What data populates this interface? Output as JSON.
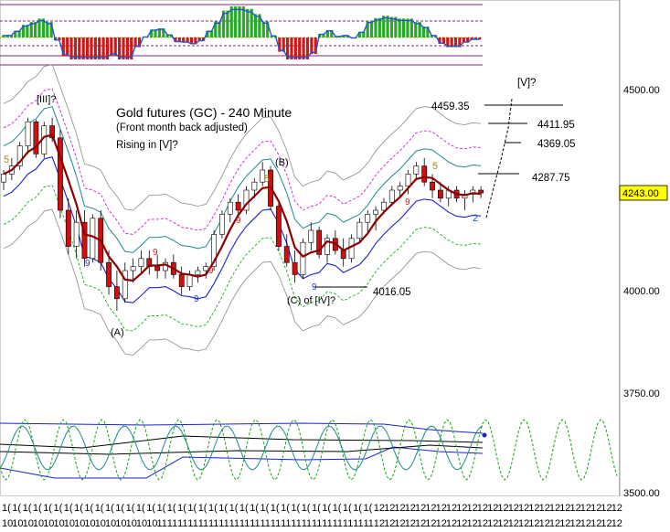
{
  "chart_data": {
    "type": "candlestick",
    "title": "Gold futures (GC) - 240 Minute",
    "subtitle_lines": [
      "(Front month back adjusted)",
      "Rising in [V]?"
    ],
    "y_axis": {
      "ylim": [
        3430,
        4700
      ],
      "ticks": [
        "4500.00",
        "4000.00",
        "3750.00",
        "3500.00"
      ],
      "tick_values": [
        4500,
        4000,
        3750,
        3500
      ]
    },
    "last_price": {
      "value": 4243,
      "label": "4243.00"
    },
    "x_tick_labels_row1": [
      "1(",
      "1(",
      "1(",
      "1(",
      "1(",
      "1(",
      "1(",
      "1(",
      "1(",
      "1(",
      "1(",
      "1(",
      "1(",
      "1(",
      "1(",
      "1(",
      "1(",
      "1(",
      "1(",
      "1(",
      "1(",
      "1(",
      "1(",
      "1(",
      "1(",
      "1(",
      "1(",
      "1(",
      "1(",
      "1(",
      "1(",
      "1(",
      "1(",
      "1(",
      "1(",
      "1(",
      "12",
      "12",
      "12",
      "12",
      "12",
      "12",
      "12",
      "12",
      "12",
      "12",
      "12",
      "12",
      "12",
      "12",
      "12",
      "12",
      "12",
      "12",
      "12",
      "12",
      "12",
      "12",
      "12",
      "12"
    ],
    "x_tick_labels_row2": [
      "10",
      "10",
      "10",
      "10",
      "10",
      "10",
      "10",
      "10",
      "10",
      "10",
      "10",
      "10",
      "10",
      "10",
      "10",
      "11",
      "11",
      "11",
      "11",
      "11",
      "11",
      "11",
      "11",
      "11",
      "11",
      "11",
      "11",
      "11",
      "11",
      "11",
      "11",
      "11",
      "11",
      "11",
      "11",
      "11",
      "12",
      "12",
      "12",
      "12",
      "12",
      "12",
      "12",
      "12",
      "12",
      "12",
      "12",
      "12",
      "12",
      "12",
      "12",
      "12",
      "12",
      "12",
      "12",
      "12",
      "12",
      "12",
      "12",
      "12"
    ],
    "wave_labels": [
      {
        "text": "[III]?",
        "price": 4545,
        "bar": 5
      },
      {
        "text": "5",
        "price": 4300,
        "bar": 0
      },
      {
        "text": "(A)",
        "price": 3960,
        "bar": 14
      },
      {
        "text": "(B)",
        "price": 4330,
        "bar": 41
      },
      {
        "text": "5",
        "price": 4285,
        "bar": 39
      },
      {
        "text": "(C) of [IV]?",
        "price": 3985,
        "bar": 47
      },
      {
        "text": "5",
        "price": 4300,
        "bar": 68
      },
      {
        "text": "2",
        "price": 4180,
        "bar": 74
      },
      {
        "text": "9",
        "price": 4060,
        "bar": 12
      },
      {
        "text": "9",
        "price": 4235,
        "bar": 31
      },
      {
        "text": "9",
        "price": 4100,
        "bar": 24
      },
      {
        "text": "9",
        "price": 4015,
        "bar": 28
      },
      {
        "text": "9",
        "price": 4000,
        "bar": 48
      },
      {
        "text": "9",
        "price": 4215,
        "bar": 62
      },
      {
        "text": "9",
        "price": 4145,
        "bar": 12
      }
    ],
    "target_levels": [
      {
        "label": "[V]?",
        "price": 4595
      },
      {
        "label": "4459.35",
        "price": 4455
      },
      {
        "label": "4411.95",
        "price": 4410
      },
      {
        "label": "4369.05",
        "price": 4367
      },
      {
        "label": "4287.75",
        "price": 4287
      },
      {
        "label": "4016.05",
        "price": 4015
      }
    ],
    "candles": [
      [
        4270,
        4300,
        4250,
        4290
      ],
      [
        4290,
        4330,
        4275,
        4310
      ],
      [
        4310,
        4370,
        4300,
        4360
      ],
      [
        4360,
        4430,
        4340,
        4420
      ],
      [
        4420,
        4425,
        4330,
        4340
      ],
      [
        4340,
        4420,
        4330,
        4410
      ],
      [
        4410,
        4430,
        4370,
        4380
      ],
      [
        4380,
        4400,
        4180,
        4200
      ],
      [
        4200,
        4230,
        4090,
        4110
      ],
      [
        4110,
        4200,
        4080,
        4170
      ],
      [
        4170,
        4200,
        4060,
        4080
      ],
      [
        4080,
        4190,
        4070,
        4180
      ],
      [
        4180,
        4200,
        4050,
        4070
      ],
      [
        4070,
        4100,
        3990,
        4010
      ],
      [
        4010,
        4050,
        3950,
        3980
      ],
      [
        3980,
        4070,
        3970,
        4050
      ],
      [
        4050,
        4080,
        4020,
        4060
      ],
      [
        4060,
        4100,
        4040,
        4080
      ],
      [
        4080,
        4100,
        4040,
        4060
      ],
      [
        4060,
        4090,
        4030,
        4050
      ],
      [
        4050,
        4080,
        4030,
        4070
      ],
      [
        4070,
        4090,
        4030,
        4040
      ],
      [
        4040,
        4060,
        3990,
        4010
      ],
      [
        4010,
        4050,
        4000,
        4040
      ],
      [
        4040,
        4060,
        4020,
        4050
      ],
      [
        4050,
        4070,
        4030,
        4060
      ],
      [
        4060,
        4150,
        4050,
        4140
      ],
      [
        4140,
        4200,
        4130,
        4190
      ],
      [
        4190,
        4230,
        4170,
        4220
      ],
      [
        4220,
        4240,
        4180,
        4200
      ],
      [
        4200,
        4260,
        4190,
        4250
      ],
      [
        4250,
        4280,
        4230,
        4270
      ],
      [
        4270,
        4320,
        4260,
        4300
      ],
      [
        4300,
        4310,
        4200,
        4210
      ],
      [
        4210,
        4220,
        4100,
        4110
      ],
      [
        4110,
        4140,
        4060,
        4070
      ],
      [
        4070,
        4100,
        4020,
        4040
      ],
      [
        4040,
        4130,
        4030,
        4120
      ],
      [
        4120,
        4170,
        4100,
        4150
      ],
      [
        4150,
        4160,
        4080,
        4090
      ],
      [
        4090,
        4140,
        4070,
        4130
      ],
      [
        4130,
        4150,
        4090,
        4100
      ],
      [
        4100,
        4130,
        4060,
        4080
      ],
      [
        4080,
        4140,
        4070,
        4130
      ],
      [
        4130,
        4180,
        4120,
        4170
      ],
      [
        4170,
        4200,
        4140,
        4190
      ],
      [
        4190,
        4210,
        4150,
        4200
      ],
      [
        4200,
        4230,
        4190,
        4220
      ],
      [
        4220,
        4260,
        4210,
        4250
      ],
      [
        4250,
        4270,
        4230,
        4260
      ],
      [
        4260,
        4300,
        4240,
        4290
      ],
      [
        4290,
        4320,
        4280,
        4310
      ],
      [
        4310,
        4330,
        4260,
        4270
      ],
      [
        4270,
        4290,
        4230,
        4250
      ],
      [
        4250,
        4270,
        4220,
        4230
      ],
      [
        4230,
        4260,
        4210,
        4250
      ],
      [
        4250,
        4260,
        4220,
        4230
      ],
      [
        4230,
        4250,
        4200,
        4240
      ],
      [
        4240,
        4260,
        4220,
        4250
      ],
      [
        4250,
        4260,
        4230,
        4243
      ]
    ]
  }
}
